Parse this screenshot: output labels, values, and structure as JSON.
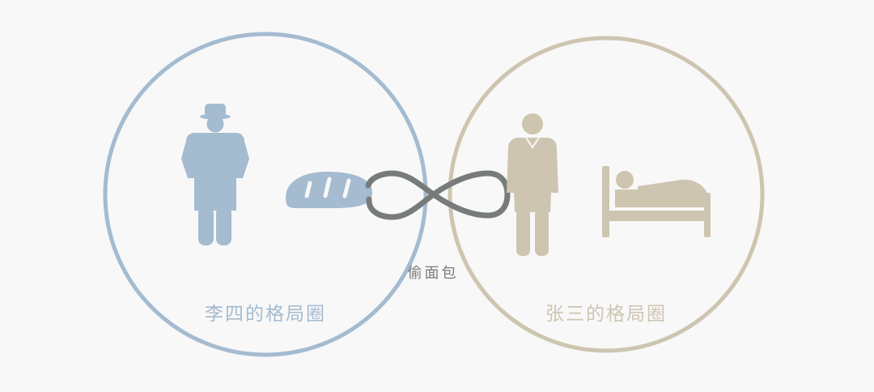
{
  "left_circle": {
    "label": "李四的格局圈",
    "color": "#a4bbd0"
  },
  "right_circle": {
    "label": "张三的格局圈",
    "color": "#cdc5b0"
  },
  "link": {
    "label": "偷面包",
    "color": "#777c7b"
  },
  "icons": {
    "left_person": "man-with-hat-icon",
    "bread": "bread-icon",
    "right_person": "man-in-suit-icon",
    "bed": "person-in-bed-icon",
    "infinity": "infinity-icon"
  }
}
